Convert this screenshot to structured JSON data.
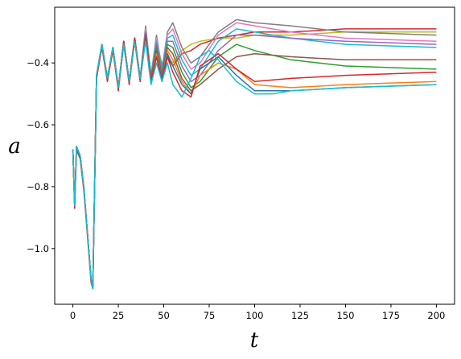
{
  "chart_data": {
    "type": "line",
    "title": "",
    "xlabel": "t",
    "ylabel": "a",
    "xlim": [
      -10,
      210
    ],
    "ylim": [
      -1.18,
      -0.22
    ],
    "xticks": [
      0,
      25,
      50,
      75,
      100,
      125,
      150,
      175,
      200
    ],
    "yticks": [
      -1.0,
      -0.8,
      -0.6,
      -0.4
    ],
    "xtick_labels": [
      "0",
      "25",
      "50",
      "75",
      "100",
      "125",
      "150",
      "175",
      "200"
    ],
    "ytick_labels": [
      "−1.0",
      "−0.8",
      "−0.6",
      "−0.4"
    ],
    "grid": false,
    "legend": "none",
    "series": [
      {
        "color": "#bcbd22",
        "x": [
          0,
          1,
          2,
          4,
          6,
          8,
          10,
          11,
          13,
          16,
          19,
          22,
          25,
          28,
          31,
          34,
          37,
          40,
          43,
          46,
          49,
          52,
          55,
          60,
          65,
          70,
          80,
          90,
          100,
          120,
          150,
          200
        ],
        "y": [
          -0.68,
          -0.86,
          -0.67,
          -0.7,
          -0.8,
          -0.95,
          -1.1,
          -1.12,
          -0.45,
          -0.34,
          -0.45,
          -0.36,
          -0.48,
          -0.34,
          -0.46,
          -0.33,
          -0.45,
          -0.32,
          -0.44,
          -0.34,
          -0.4,
          -0.38,
          -0.4,
          -0.36,
          -0.34,
          -0.33,
          -0.32,
          -0.32,
          -0.31,
          -0.31,
          -0.3,
          -0.3
        ]
      },
      {
        "color": "#d62728",
        "x": [
          0,
          1,
          2,
          4,
          6,
          8,
          10,
          11,
          13,
          16,
          19,
          22,
          25,
          28,
          31,
          34,
          37,
          40,
          43,
          46,
          49,
          52,
          55,
          60,
          65,
          70,
          80,
          90,
          100,
          120,
          150,
          200
        ],
        "y": [
          -0.68,
          -0.87,
          -0.68,
          -0.71,
          -0.81,
          -0.96,
          -1.11,
          -1.13,
          -0.45,
          -0.35,
          -0.46,
          -0.36,
          -0.49,
          -0.34,
          -0.47,
          -0.33,
          -0.46,
          -0.32,
          -0.45,
          -0.34,
          -0.41,
          -0.38,
          -0.41,
          -0.37,
          -0.36,
          -0.34,
          -0.32,
          -0.31,
          -0.3,
          -0.3,
          -0.29,
          -0.29
        ]
      },
      {
        "color": "#7f7f7f",
        "x": [
          0,
          1,
          2,
          4,
          6,
          8,
          10,
          11,
          13,
          16,
          19,
          22,
          25,
          28,
          31,
          34,
          37,
          40,
          43,
          46,
          49,
          52,
          55,
          60,
          65,
          70,
          80,
          90,
          100,
          120,
          150,
          200
        ],
        "y": [
          -0.68,
          -0.86,
          -0.67,
          -0.7,
          -0.8,
          -0.95,
          -1.1,
          -1.12,
          -0.44,
          -0.34,
          -0.45,
          -0.35,
          -0.48,
          -0.33,
          -0.46,
          -0.32,
          -0.45,
          -0.28,
          -0.44,
          -0.31,
          -0.42,
          -0.3,
          -0.27,
          -0.35,
          -0.4,
          -0.38,
          -0.3,
          -0.26,
          -0.27,
          -0.28,
          -0.3,
          -0.31
        ]
      },
      {
        "color": "#e377c2",
        "x": [
          0,
          1,
          2,
          4,
          6,
          8,
          10,
          11,
          13,
          16,
          19,
          22,
          25,
          28,
          31,
          34,
          37,
          40,
          43,
          46,
          49,
          52,
          55,
          60,
          65,
          70,
          80,
          90,
          100,
          120,
          150,
          200
        ],
        "y": [
          -0.68,
          -0.86,
          -0.67,
          -0.7,
          -0.8,
          -0.95,
          -1.1,
          -1.12,
          -0.44,
          -0.34,
          -0.45,
          -0.35,
          -0.48,
          -0.33,
          -0.46,
          -0.32,
          -0.45,
          -0.29,
          -0.44,
          -0.32,
          -0.42,
          -0.31,
          -0.29,
          -0.37,
          -0.42,
          -0.4,
          -0.31,
          -0.27,
          -0.28,
          -0.3,
          -0.32,
          -0.33
        ]
      },
      {
        "color": "#17becf",
        "x": [
          0,
          1,
          2,
          4,
          6,
          8,
          10,
          11,
          13,
          16,
          19,
          22,
          25,
          28,
          31,
          34,
          37,
          40,
          43,
          46,
          49,
          52,
          55,
          60,
          65,
          70,
          80,
          90,
          100,
          120,
          150,
          200
        ],
        "y": [
          -0.68,
          -0.86,
          -0.67,
          -0.7,
          -0.8,
          -0.95,
          -1.1,
          -1.12,
          -0.44,
          -0.34,
          -0.45,
          -0.35,
          -0.48,
          -0.33,
          -0.46,
          -0.32,
          -0.45,
          -0.3,
          -0.44,
          -0.33,
          -0.42,
          -0.32,
          -0.31,
          -0.39,
          -0.44,
          -0.42,
          -0.33,
          -0.29,
          -0.3,
          -0.32,
          -0.34,
          -0.35
        ]
      },
      {
        "color": "#9467bd",
        "x": [
          0,
          1,
          2,
          4,
          6,
          8,
          10,
          11,
          13,
          16,
          19,
          22,
          25,
          28,
          31,
          34,
          37,
          40,
          43,
          46,
          49,
          52,
          55,
          60,
          65,
          70,
          80,
          90,
          100,
          120,
          150,
          200
        ],
        "y": [
          -0.68,
          -0.86,
          -0.67,
          -0.7,
          -0.8,
          -0.95,
          -1.1,
          -1.12,
          -0.44,
          -0.34,
          -0.45,
          -0.35,
          -0.48,
          -0.33,
          -0.46,
          -0.32,
          -0.45,
          -0.3,
          -0.45,
          -0.34,
          -0.43,
          -0.33,
          -0.33,
          -0.41,
          -0.46,
          -0.44,
          -0.36,
          -0.31,
          -0.31,
          -0.32,
          -0.33,
          -0.34
        ]
      },
      {
        "color": "#2ca02c",
        "x": [
          0,
          1,
          2,
          4,
          6,
          8,
          10,
          11,
          13,
          16,
          19,
          22,
          25,
          28,
          31,
          34,
          37,
          40,
          43,
          46,
          49,
          52,
          55,
          60,
          65,
          70,
          80,
          90,
          100,
          120,
          150,
          200
        ],
        "y": [
          -0.68,
          -0.86,
          -0.67,
          -0.7,
          -0.8,
          -0.95,
          -1.1,
          -1.12,
          -0.44,
          -0.34,
          -0.45,
          -0.35,
          -0.48,
          -0.33,
          -0.46,
          -0.32,
          -0.45,
          -0.31,
          -0.45,
          -0.35,
          -0.44,
          -0.34,
          -0.35,
          -0.43,
          -0.48,
          -0.46,
          -0.38,
          -0.34,
          -0.36,
          -0.39,
          -0.41,
          -0.42
        ]
      },
      {
        "color": "#8c564b",
        "x": [
          0,
          1,
          2,
          4,
          6,
          8,
          10,
          11,
          13,
          16,
          19,
          22,
          25,
          28,
          31,
          34,
          37,
          40,
          43,
          46,
          49,
          52,
          55,
          60,
          65,
          70,
          80,
          90,
          100,
          120,
          150,
          200
        ],
        "y": [
          -0.68,
          -0.86,
          -0.67,
          -0.7,
          -0.8,
          -0.95,
          -1.1,
          -1.12,
          -0.44,
          -0.34,
          -0.45,
          -0.35,
          -0.48,
          -0.33,
          -0.46,
          -0.32,
          -0.45,
          -0.31,
          -0.45,
          -0.36,
          -0.44,
          -0.35,
          -0.37,
          -0.45,
          -0.49,
          -0.47,
          -0.42,
          -0.38,
          -0.37,
          -0.38,
          -0.39,
          -0.39
        ]
      },
      {
        "color": "#ff7f0e",
        "x": [
          0,
          1,
          2,
          4,
          6,
          8,
          10,
          11,
          13,
          16,
          19,
          22,
          25,
          28,
          31,
          34,
          37,
          40,
          43,
          46,
          49,
          52,
          55,
          60,
          65,
          70,
          80,
          90,
          100,
          120,
          150,
          200
        ],
        "y": [
          -0.68,
          -0.86,
          -0.67,
          -0.7,
          -0.8,
          -0.95,
          -1.1,
          -1.12,
          -0.44,
          -0.34,
          -0.45,
          -0.35,
          -0.48,
          -0.33,
          -0.46,
          -0.32,
          -0.45,
          -0.32,
          -0.46,
          -0.37,
          -0.45,
          -0.36,
          -0.39,
          -0.46,
          -0.5,
          -0.44,
          -0.4,
          -0.42,
          -0.47,
          -0.48,
          -0.47,
          -0.46
        ]
      },
      {
        "color": "#1f77b4",
        "x": [
          0,
          1,
          2,
          4,
          6,
          8,
          10,
          11,
          13,
          16,
          19,
          22,
          25,
          28,
          31,
          34,
          37,
          40,
          43,
          46,
          49,
          52,
          55,
          60,
          65,
          70,
          80,
          90,
          100,
          120,
          150,
          200
        ],
        "y": [
          -0.68,
          -0.86,
          -0.67,
          -0.7,
          -0.8,
          -0.95,
          -1.1,
          -1.12,
          -0.44,
          -0.34,
          -0.45,
          -0.35,
          -0.48,
          -0.33,
          -0.46,
          -0.32,
          -0.45,
          -0.32,
          -0.46,
          -0.38,
          -0.45,
          -0.37,
          -0.41,
          -0.47,
          -0.5,
          -0.42,
          -0.38,
          -0.44,
          -0.49,
          -0.49,
          -0.48,
          -0.47
        ]
      },
      {
        "color": "#d62728",
        "x": [
          0,
          1,
          2,
          4,
          6,
          8,
          10,
          11,
          13,
          16,
          19,
          22,
          25,
          28,
          31,
          34,
          37,
          40,
          43,
          46,
          49,
          52,
          55,
          60,
          65,
          70,
          80,
          90,
          100,
          120,
          150,
          200
        ],
        "y": [
          -0.68,
          -0.86,
          -0.67,
          -0.7,
          -0.8,
          -0.95,
          -1.1,
          -1.13,
          -0.44,
          -0.34,
          -0.45,
          -0.35,
          -0.48,
          -0.33,
          -0.46,
          -0.32,
          -0.45,
          -0.32,
          -0.46,
          -0.38,
          -0.46,
          -0.38,
          -0.43,
          -0.49,
          -0.51,
          -0.41,
          -0.37,
          -0.42,
          -0.46,
          -0.45,
          -0.44,
          -0.43
        ]
      },
      {
        "color": "#17becf",
        "x": [
          0,
          1,
          2,
          4,
          6,
          8,
          10,
          11,
          13,
          16,
          19,
          22,
          25,
          28,
          31,
          34,
          37,
          40,
          43,
          46,
          49,
          52,
          55,
          60,
          65,
          70,
          75,
          80,
          90,
          100,
          110,
          120,
          150,
          200
        ],
        "y": [
          -0.68,
          -0.86,
          -0.67,
          -0.7,
          -0.8,
          -0.95,
          -1.1,
          -1.13,
          -0.44,
          -0.34,
          -0.45,
          -0.35,
          -0.48,
          -0.34,
          -0.46,
          -0.33,
          -0.45,
          -0.33,
          -0.47,
          -0.4,
          -0.46,
          -0.4,
          -0.47,
          -0.51,
          -0.45,
          -0.38,
          -0.36,
          -0.39,
          -0.46,
          -0.5,
          -0.5,
          -0.49,
          -0.48,
          -0.47
        ]
      }
    ]
  }
}
